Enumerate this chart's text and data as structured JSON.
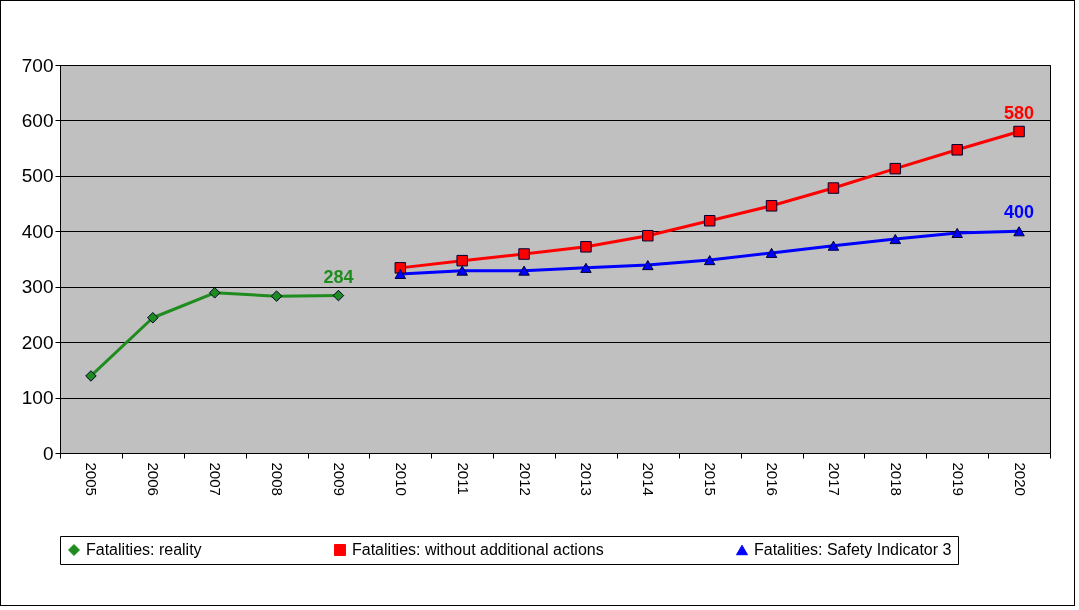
{
  "chart_data": {
    "type": "line",
    "categories": [
      "2005",
      "2006",
      "2007",
      "2008",
      "2009",
      "2010",
      "2011",
      "2012",
      "2013",
      "2014",
      "2015",
      "2016",
      "2017",
      "2018",
      "2019",
      "2020"
    ],
    "ylim": [
      0,
      700
    ],
    "yticks": [
      0,
      100,
      200,
      300,
      400,
      500,
      600,
      700
    ],
    "grid": "y",
    "legend": "bottom",
    "line_style": "solid",
    "series": [
      {
        "name": "Fatalities: reality",
        "color": "#1e8c1e",
        "marker": "diamond",
        "values": [
          139,
          244,
          289,
          283,
          284,
          null,
          null,
          null,
          null,
          null,
          null,
          null,
          null,
          null,
          null,
          null
        ],
        "value_labels": [
          null,
          null,
          null,
          null,
          "284",
          null,
          null,
          null,
          null,
          null,
          null,
          null,
          null,
          null,
          null,
          null
        ]
      },
      {
        "name": "Fatalities: without additional actions",
        "color": "#ff0000",
        "marker": "square",
        "values": [
          null,
          null,
          null,
          null,
          null,
          334,
          347,
          359,
          372,
          392,
          419,
          446,
          478,
          513,
          547,
          580
        ],
        "value_labels": [
          null,
          null,
          null,
          null,
          null,
          null,
          null,
          null,
          null,
          null,
          null,
          null,
          null,
          null,
          null,
          "580"
        ]
      },
      {
        "name": "Fatalities: Safety Indicator 3",
        "color": "#0000ff",
        "marker": "triangle",
        "values": [
          null,
          null,
          null,
          null,
          null,
          323,
          329,
          329,
          334,
          339,
          348,
          361,
          374,
          386,
          397,
          400
        ],
        "value_labels": [
          null,
          null,
          null,
          null,
          null,
          null,
          null,
          null,
          null,
          null,
          null,
          null,
          null,
          null,
          null,
          "400"
        ]
      }
    ]
  }
}
